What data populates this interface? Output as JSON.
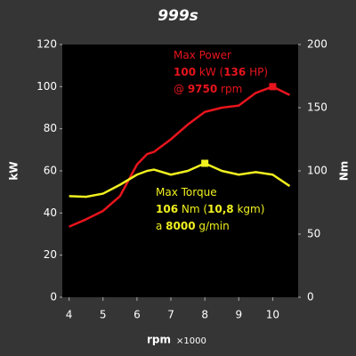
{
  "chart_data": {
    "type": "line",
    "title": "999s",
    "x_label": "rpm",
    "x_unit": "×1000",
    "y_label": "kW",
    "y2_label": "Nm",
    "x": [
      4,
      4.5,
      5,
      5.5,
      6,
      6.3,
      6.5,
      7,
      7.5,
      8,
      8.5,
      9,
      9.5,
      10,
      10.5
    ],
    "xlim": [
      3.8,
      10.75
    ],
    "xticks": [
      4,
      5,
      6,
      7,
      8,
      9,
      10
    ],
    "ylim": [
      0,
      120
    ],
    "yticks": [
      0,
      20,
      40,
      60,
      80,
      100,
      120
    ],
    "y2lim": [
      0,
      200
    ],
    "y2ticks": [
      0,
      50,
      100,
      150,
      200
    ],
    "series": [
      {
        "name": "Power",
        "color": "#e8141c",
        "highlight": 13,
        "values": [
          33.5,
          37,
          41,
          48,
          63,
          68,
          69,
          75,
          82,
          88,
          90,
          91,
          97,
          100,
          96
        ]
      },
      {
        "name": "Torque",
        "color": "#f0f020",
        "axis": "y2",
        "highlight": 9,
        "values": [
          80,
          79.5,
          82,
          89,
          97,
          100,
          101,
          97,
          100,
          106,
          100,
          97,
          99,
          97,
          88
        ]
      }
    ],
    "annotations": [
      {
        "color": "#e8141c",
        "lines": [
          [
            {
              "text": "Max Power",
              "bold": false
            }
          ],
          [
            {
              "text": "100",
              "bold": true
            },
            {
              "text": " kW (",
              "bold": false
            },
            {
              "text": "136",
              "bold": true
            },
            {
              "text": " HP)",
              "bold": false
            }
          ],
          [
            {
              "text": "@ ",
              "bold": false
            },
            {
              "text": "9750",
              "bold": true
            },
            {
              "text": " rpm",
              "bold": false
            }
          ]
        ]
      },
      {
        "color": "#f0f020",
        "lines": [
          [
            {
              "text": "Max Torque",
              "bold": false
            }
          ],
          [
            {
              "text": "106",
              "bold": true
            },
            {
              "text": " Nm (",
              "bold": false
            },
            {
              "text": "10,8",
              "bold": true
            },
            {
              "text": " kgm)",
              "bold": false
            }
          ],
          [
            {
              "text": "a ",
              "bold": false
            },
            {
              "text": "8000",
              "bold": true
            },
            {
              "text": " g/min",
              "bold": false
            }
          ]
        ]
      }
    ]
  }
}
